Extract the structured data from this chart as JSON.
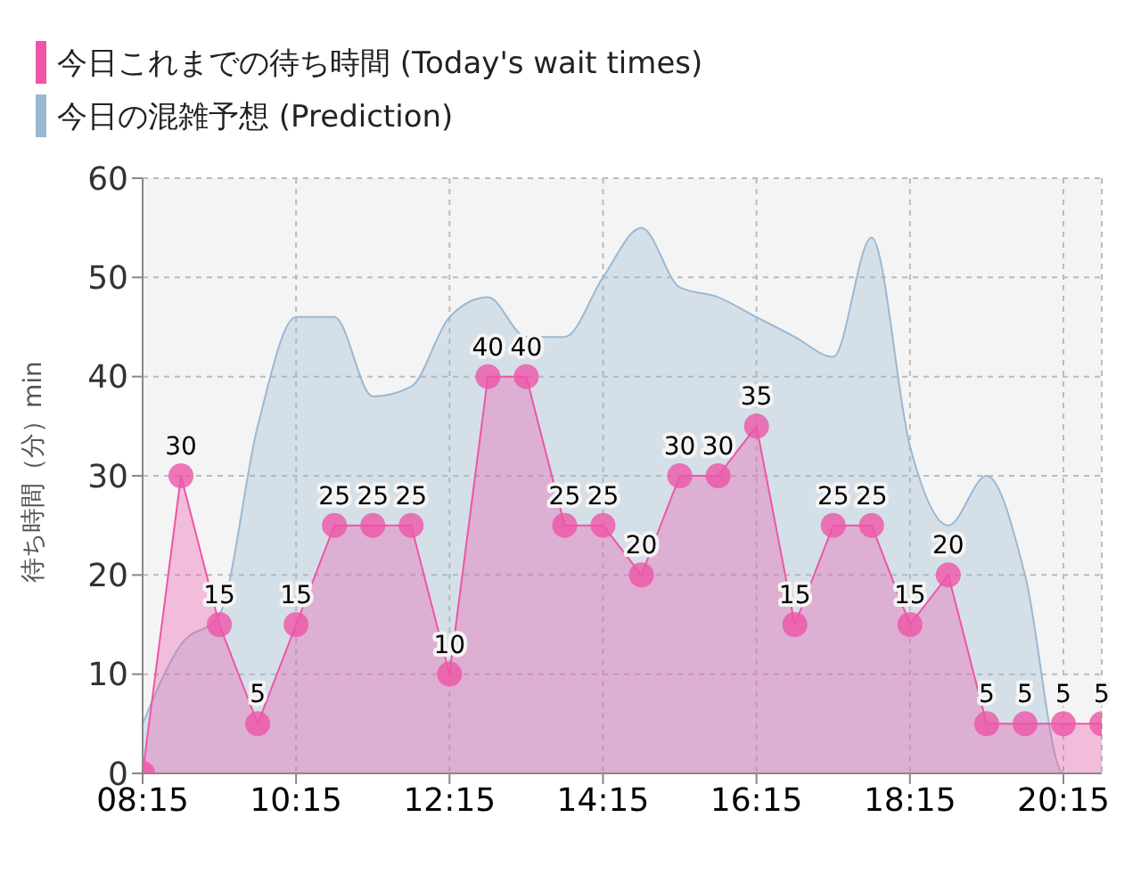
{
  "chart_data": {
    "type": "area",
    "ylabel": "待ち時間（分）min",
    "x": [
      8.25,
      8.75,
      9.25,
      9.75,
      10.25,
      10.75,
      11.25,
      11.75,
      12.25,
      12.75,
      13.25,
      13.75,
      14.25,
      14.75,
      15.25,
      15.75,
      16.25,
      16.75,
      17.25,
      17.75,
      18.25,
      18.75,
      19.25,
      19.75,
      20.25,
      20.75
    ],
    "series": [
      {
        "name": "今日これまでの待ち時間 (Today's wait times)",
        "color": "#ee55a8",
        "marker": "circle",
        "values": [
          0,
          30,
          15,
          5,
          15,
          25,
          25,
          25,
          10,
          40,
          40,
          25,
          25,
          20,
          30,
          30,
          35,
          15,
          25,
          25,
          15,
          20,
          5,
          5,
          5,
          5
        ],
        "value_labels": [
          null,
          "30",
          "15",
          "5",
          "15",
          "25",
          "25",
          "25",
          "10",
          "40",
          "40",
          "25",
          "25",
          "20",
          "30",
          "30",
          "35",
          "15",
          "25",
          "25",
          "15",
          "20",
          "5",
          "5",
          "5",
          "5"
        ]
      },
      {
        "name": "今日の混雑予想 (Prediction)",
        "color": "#9bb8d2",
        "marker": "none",
        "values": [
          5,
          13,
          16,
          35,
          46,
          46,
          38,
          39,
          46,
          48,
          44,
          44,
          50,
          55,
          49,
          48,
          46,
          44,
          42,
          54,
          33,
          25,
          30,
          20,
          0,
          0
        ]
      }
    ],
    "xlim": [
      8.25,
      20.75
    ],
    "xticks": [
      {
        "value": 8.25,
        "label": "08:15"
      },
      {
        "value": 10.25,
        "label": "10:15"
      },
      {
        "value": 12.25,
        "label": "12:15"
      },
      {
        "value": 14.25,
        "label": "14:15"
      },
      {
        "value": 16.25,
        "label": "16:15"
      },
      {
        "value": 18.25,
        "label": "18:15"
      },
      {
        "value": 20.25,
        "label": "20:15"
      }
    ],
    "ylim": [
      0,
      60
    ],
    "yticks": [
      0,
      10,
      20,
      30,
      40,
      50,
      60
    ],
    "grid": true,
    "legend": "top left"
  }
}
